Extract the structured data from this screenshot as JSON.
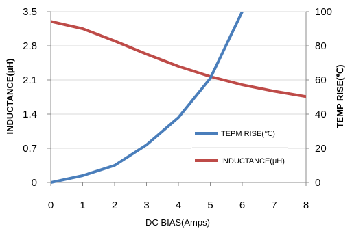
{
  "chart_data": {
    "type": "line",
    "title": "",
    "xlabel": "DC BIAS(Amps)",
    "ylabel_left": "INDUCTANCE(μH)",
    "ylabel_right": "TEMP RISE(℃)",
    "x_ticks": [
      "0",
      "1",
      "2",
      "3",
      "4",
      "5",
      "6",
      "7",
      "8"
    ],
    "y_left_ticks": [
      "0",
      "0.7",
      "1.4",
      "2.1",
      "2.8",
      "3.5"
    ],
    "y_right_ticks": [
      "0",
      "20",
      "40",
      "60",
      "80",
      "100"
    ],
    "xlim": [
      0,
      8
    ],
    "ylim_left": [
      0,
      3.5
    ],
    "ylim_right": [
      0,
      100
    ],
    "grid": "horizontal",
    "legend_position": "lower-right",
    "series": [
      {
        "name": "TEPM RISE(℃)",
        "axis": "right",
        "color": "#4a7ebb",
        "x": [
          0,
          1,
          2,
          3,
          4,
          5,
          6
        ],
        "y": [
          0,
          4,
          10,
          22,
          38,
          61,
          100
        ]
      },
      {
        "name": "INDUCTANCE(μH)",
        "axis": "left",
        "color": "#be4b48",
        "x": [
          0,
          1,
          2,
          3,
          4,
          5,
          6,
          7,
          8
        ],
        "y": [
          3.3,
          3.15,
          2.9,
          2.63,
          2.38,
          2.17,
          2.0,
          1.87,
          1.76
        ]
      }
    ]
  }
}
